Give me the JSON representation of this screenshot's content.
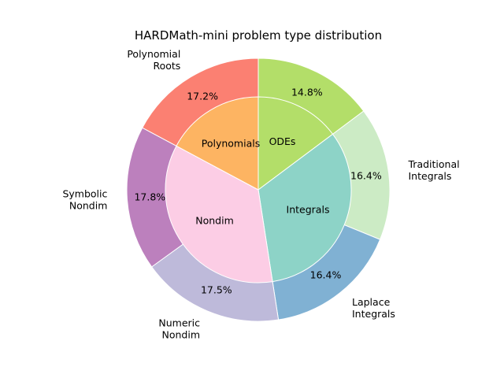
{
  "chart_data": {
    "type": "pie",
    "subtype": "nested-donut",
    "title": "HARDMath-mini problem type distribution",
    "outer": [
      {
        "name": "ODEs",
        "label": "",
        "pct_label": "14.8%",
        "value": 14.8,
        "color": "#b3de69"
      },
      {
        "name": "Traditional Integrals",
        "label": "Traditional\nIntegrals",
        "pct_label": "16.4%",
        "value": 16.4,
        "color": "#ccebc5"
      },
      {
        "name": "Laplace Integrals",
        "label": "Laplace\nIntegrals",
        "pct_label": "16.4%",
        "value": 16.4,
        "color": "#80b1d3"
      },
      {
        "name": "Numeric Nondim",
        "label": "Numeric\nNondim",
        "pct_label": "17.5%",
        "value": 17.5,
        "color": "#bebada"
      },
      {
        "name": "Symbolic Nondim",
        "label": "Symbolic\nNondim",
        "pct_label": "17.8%",
        "value": 17.8,
        "color": "#bc80bd"
      },
      {
        "name": "Polynomial Roots",
        "label": "Polynomial\nRoots",
        "pct_label": "17.2%",
        "value": 17.2,
        "color": "#fb8072"
      }
    ],
    "inner": [
      {
        "label": "ODEs",
        "value": 14.8,
        "color": "#b3de69"
      },
      {
        "label": "Integrals",
        "value": 32.8,
        "color": "#8dd3c7"
      },
      {
        "label": "Nondim",
        "value": 35.3,
        "color": "#fccde5"
      },
      {
        "label": "Polynomials",
        "value": 17.2,
        "color": "#fdb462"
      }
    ],
    "start_angle_deg": 90,
    "direction": "clockwise",
    "edge_color": "#ffffff"
  }
}
